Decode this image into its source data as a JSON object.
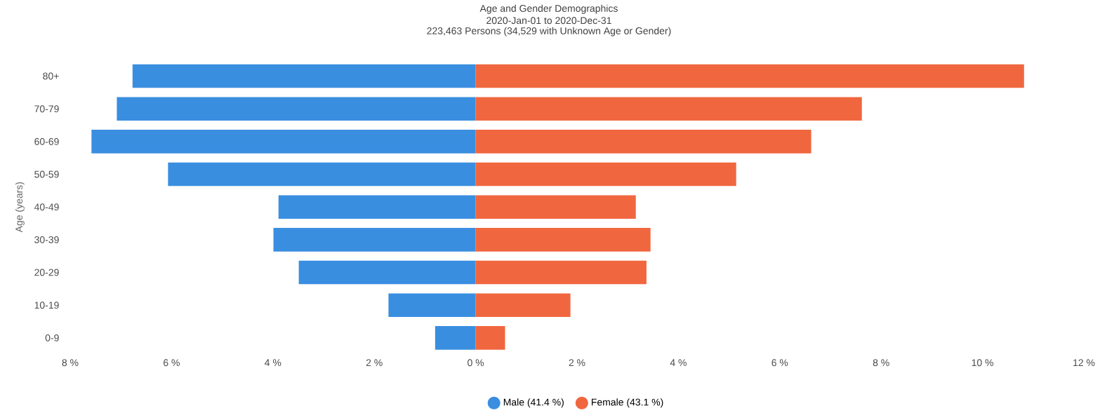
{
  "chart_data": {
    "type": "bar",
    "orientation": "horizontal",
    "stacked": true,
    "title": "Age and Gender Demographics",
    "subtitle": "2020-Jan-01 to 2020-Dec-31",
    "annotations": [
      "223,463 Persons (34,529 with Unknown Age or Gender)"
    ],
    "ylabel": "Age (years)",
    "categories": [
      "80+",
      "70-79",
      "60-69",
      "50-59",
      "40-49",
      "30-39",
      "20-29",
      "10-19",
      "0-9"
    ],
    "series": [
      {
        "name": "Male (41.4 %)",
        "color": "#3a8ee0",
        "values": [
          -6.77,
          -7.08,
          -7.58,
          -6.07,
          -3.89,
          -3.99,
          -3.49,
          -1.72,
          -0.8
        ]
      },
      {
        "name": "Female (43.1 %)",
        "color": "#f0673f",
        "values": [
          10.82,
          7.62,
          6.62,
          5.14,
          3.16,
          3.45,
          3.37,
          1.87,
          0.58
        ]
      }
    ],
    "xlim": [
      -8,
      12
    ],
    "xticks": [
      {
        "value": -8,
        "label": "8 %"
      },
      {
        "value": -6,
        "label": "6 %"
      },
      {
        "value": -4,
        "label": "4 %"
      },
      {
        "value": -2,
        "label": "2 %"
      },
      {
        "value": 0,
        "label": "0 %"
      },
      {
        "value": 2,
        "label": "2 %"
      },
      {
        "value": 4,
        "label": "4 %"
      },
      {
        "value": 6,
        "label": "6 %"
      },
      {
        "value": 8,
        "label": "8 %"
      },
      {
        "value": 10,
        "label": "10 %"
      },
      {
        "value": 12,
        "label": "12 %"
      }
    ],
    "legend": "bottom",
    "grid": false
  }
}
